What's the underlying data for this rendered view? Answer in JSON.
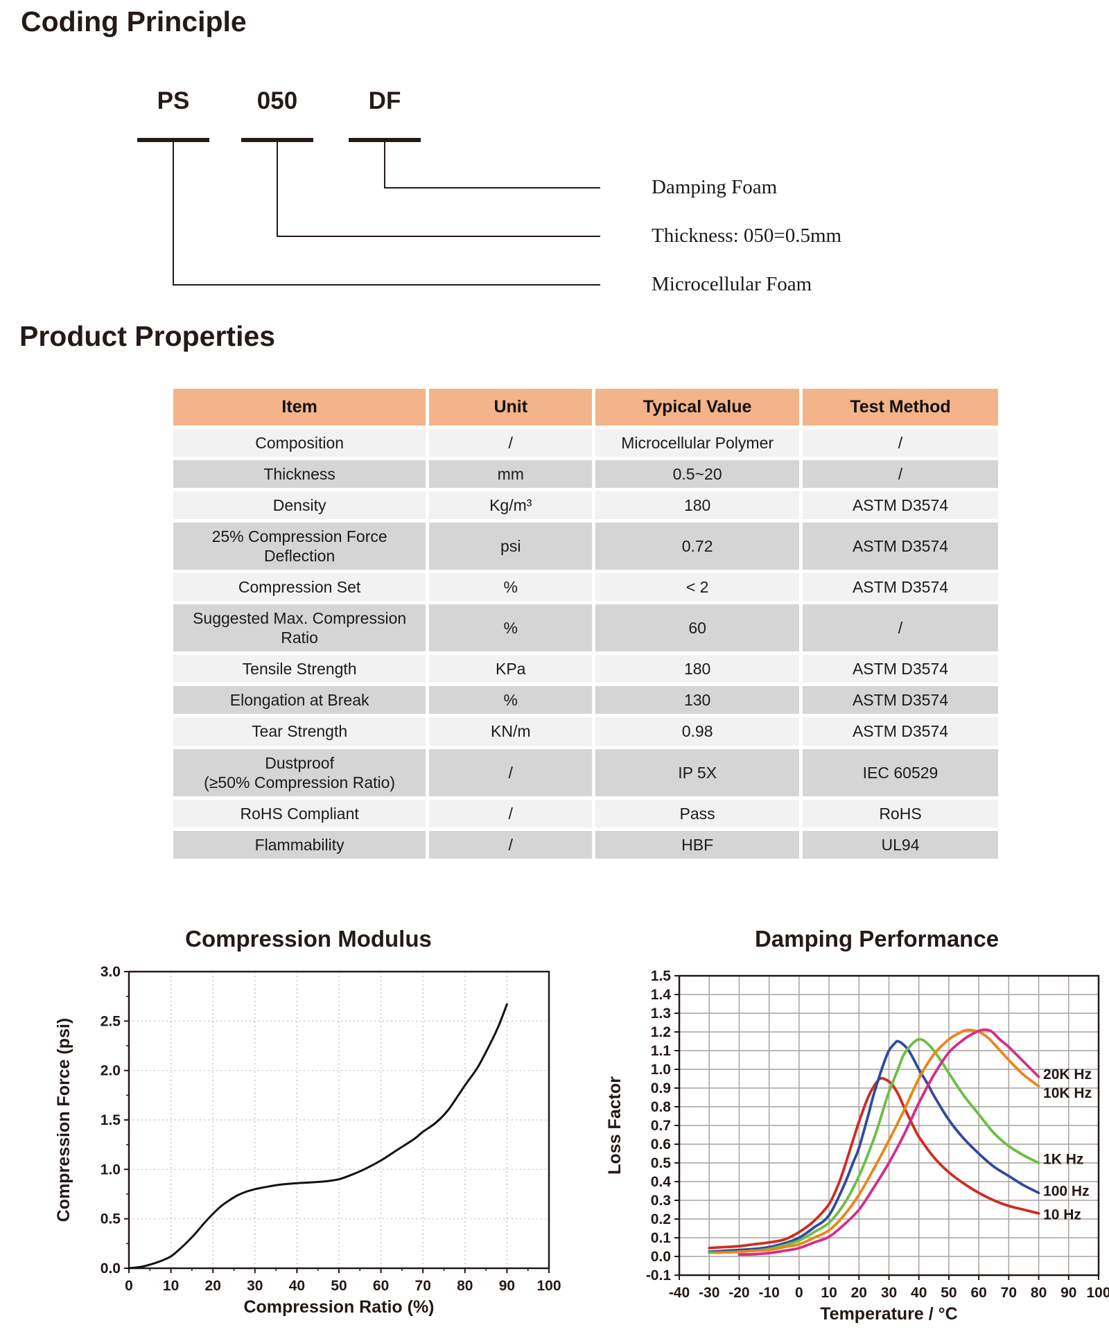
{
  "coding_section": {
    "title": "Coding Principle",
    "codes": [
      {
        "code": "PS",
        "label": "Microcellular Foam"
      },
      {
        "code": "050",
        "label": "Thickness: 050=0.5mm"
      },
      {
        "code": "DF",
        "label": "Damping Foam"
      }
    ]
  },
  "properties_section": {
    "title": "Product Properties",
    "table": {
      "header_bg": "#f2b488",
      "row_bg_light": "#f2f2f2",
      "row_bg_dark": "#d5d5d5",
      "headers": [
        "Item",
        "Unit",
        "Typical Value",
        "Test Method"
      ],
      "rows": [
        {
          "item": "Composition",
          "unit": "/",
          "typical_value": "Microcellular Polymer",
          "test_method": "/"
        },
        {
          "item": "Thickness",
          "unit": "mm",
          "typical_value": "0.5~20",
          "test_method": "/"
        },
        {
          "item": "Density",
          "unit": "Kg/m³",
          "typical_value": "180",
          "test_method": "ASTM D3574"
        },
        {
          "item": "25% Compression Force\nDeflection",
          "unit": "psi",
          "typical_value": "0.72",
          "test_method": "ASTM D3574"
        },
        {
          "item": "Compression Set",
          "unit": "%",
          "typical_value": "< 2",
          "test_method": "ASTM D3574"
        },
        {
          "item": "Suggested Max. Compression\nRatio",
          "unit": "%",
          "typical_value": "60",
          "test_method": "/"
        },
        {
          "item": "Tensile Strength",
          "unit": "KPa",
          "typical_value": "180",
          "test_method": "ASTM D3574"
        },
        {
          "item": "Elongation at Break",
          "unit": "%",
          "typical_value": "130",
          "test_method": "ASTM D3574"
        },
        {
          "item": "Tear Strength",
          "unit": "KN/m",
          "typical_value": "0.98",
          "test_method": "ASTM D3574"
        },
        {
          "item": "Dustproof\n(≥50% Compression Ratio)",
          "unit": "/",
          "typical_value": "IP 5X",
          "test_method": "IEC 60529"
        },
        {
          "item": "RoHS Compliant",
          "unit": "/",
          "typical_value": "Pass",
          "test_method": "RoHS"
        },
        {
          "item": "Flammability",
          "unit": "/",
          "typical_value": "HBF",
          "test_method": "UL94"
        }
      ]
    }
  },
  "chart_data": [
    {
      "type": "line",
      "title": "Compression Modulus",
      "xlabel": "Compression Ratio (%)",
      "ylabel": "Compression Force (psi)",
      "xlim": [
        0,
        100
      ],
      "ylim": [
        0,
        3.0
      ],
      "xstep": 10,
      "ystep": 0.5,
      "x_minor": 5,
      "y_minor": 0.25,
      "grid": "dotted",
      "grid_color": "#c9bdb9",
      "x_decimals": 0,
      "y_decimals": 1,
      "series": [
        {
          "name": "compression-curve",
          "color": "#111111",
          "points": [
            [
              0,
              0
            ],
            [
              3,
              0.015
            ],
            [
              6,
              0.05
            ],
            [
              8,
              0.08
            ],
            [
              10,
              0.12
            ],
            [
              12,
              0.19
            ],
            [
              14,
              0.27
            ],
            [
              16,
              0.36
            ],
            [
              18,
              0.46
            ],
            [
              20,
              0.55
            ],
            [
              22,
              0.63
            ],
            [
              24,
              0.69
            ],
            [
              26,
              0.74
            ],
            [
              28,
              0.775
            ],
            [
              30,
              0.8
            ],
            [
              33,
              0.825
            ],
            [
              36,
              0.845
            ],
            [
              40,
              0.86
            ],
            [
              44,
              0.87
            ],
            [
              47,
              0.88
            ],
            [
              50,
              0.9
            ],
            [
              53,
              0.945
            ],
            [
              56,
              1.0
            ],
            [
              60,
              1.09
            ],
            [
              64,
              1.2
            ],
            [
              68,
              1.31
            ],
            [
              70,
              1.38
            ],
            [
              73,
              1.47
            ],
            [
              76,
              1.6
            ],
            [
              80,
              1.85
            ],
            [
              83,
              2.03
            ],
            [
              86,
              2.27
            ],
            [
              88,
              2.45
            ],
            [
              90,
              2.67
            ]
          ]
        }
      ],
      "series_labels": []
    },
    {
      "type": "line",
      "title": "Damping Performance",
      "xlabel": "Temperature / °C",
      "ylabel": "Loss Factor",
      "xlim": [
        -40,
        100
      ],
      "ylim": [
        -0.1,
        1.5
      ],
      "xstep": 10,
      "ystep": 0.1,
      "grid": "solid",
      "grid_color": "#a9a29d",
      "x_decimals": 0,
      "y_decimals": 1,
      "series": [
        {
          "name": "10 Hz",
          "color": "#d02c20",
          "points": [
            [
              -30,
              0.045
            ],
            [
              -25,
              0.05
            ],
            [
              -20,
              0.055
            ],
            [
              -15,
              0.065
            ],
            [
              -10,
              0.075
            ],
            [
              -5,
              0.09
            ],
            [
              0,
              0.13
            ],
            [
              5,
              0.19
            ],
            [
              10,
              0.28
            ],
            [
              13,
              0.38
            ],
            [
              15,
              0.47
            ],
            [
              18,
              0.62
            ],
            [
              20,
              0.72
            ],
            [
              23,
              0.85
            ],
            [
              25,
              0.91
            ],
            [
              27,
              0.95
            ],
            [
              29,
              0.945
            ],
            [
              31,
              0.92
            ],
            [
              33,
              0.87
            ],
            [
              35,
              0.8
            ],
            [
              38,
              0.7
            ],
            [
              40,
              0.64
            ],
            [
              45,
              0.53
            ],
            [
              50,
              0.45
            ],
            [
              55,
              0.39
            ],
            [
              60,
              0.34
            ],
            [
              65,
              0.3
            ],
            [
              70,
              0.27
            ],
            [
              75,
              0.25
            ],
            [
              80,
              0.23
            ]
          ]
        },
        {
          "name": "100 Hz",
          "color": "#2f4b9e",
          "points": [
            [
              -30,
              0.025
            ],
            [
              -25,
              0.03
            ],
            [
              -20,
              0.035
            ],
            [
              -15,
              0.04
            ],
            [
              -10,
              0.05
            ],
            [
              -5,
              0.07
            ],
            [
              0,
              0.1
            ],
            [
              5,
              0.155
            ],
            [
              10,
              0.22
            ],
            [
              15,
              0.38
            ],
            [
              18,
              0.5
            ],
            [
              20,
              0.58
            ],
            [
              23,
              0.75
            ],
            [
              25,
              0.87
            ],
            [
              28,
              1.02
            ],
            [
              30,
              1.1
            ],
            [
              32,
              1.14
            ],
            [
              33,
              1.15
            ],
            [
              35,
              1.13
            ],
            [
              37,
              1.09
            ],
            [
              40,
              1.0
            ],
            [
              43,
              0.92
            ],
            [
              45,
              0.86
            ],
            [
              50,
              0.73
            ],
            [
              55,
              0.63
            ],
            [
              60,
              0.55
            ],
            [
              65,
              0.48
            ],
            [
              70,
              0.43
            ],
            [
              75,
              0.38
            ],
            [
              80,
              0.34
            ]
          ]
        },
        {
          "name": "1K Hz",
          "color": "#6abf45",
          "points": [
            [
              -30,
              0.02
            ],
            [
              -25,
              0.022
            ],
            [
              -20,
              0.025
            ],
            [
              -15,
              0.03
            ],
            [
              -10,
              0.04
            ],
            [
              -5,
              0.06
            ],
            [
              0,
              0.085
            ],
            [
              5,
              0.13
            ],
            [
              10,
              0.18
            ],
            [
              15,
              0.28
            ],
            [
              20,
              0.43
            ],
            [
              25,
              0.63
            ],
            [
              28,
              0.78
            ],
            [
              30,
              0.88
            ],
            [
              33,
              1.0
            ],
            [
              35,
              1.08
            ],
            [
              38,
              1.14
            ],
            [
              40,
              1.16
            ],
            [
              42,
              1.15
            ],
            [
              45,
              1.1
            ],
            [
              48,
              1.03
            ],
            [
              50,
              0.98
            ],
            [
              55,
              0.86
            ],
            [
              60,
              0.76
            ],
            [
              65,
              0.66
            ],
            [
              70,
              0.59
            ],
            [
              75,
              0.54
            ],
            [
              80,
              0.5
            ]
          ]
        },
        {
          "name": "10K Hz",
          "color": "#e8861c",
          "points": [
            [
              -28,
              0.02
            ],
            [
              -20,
              0.025
            ],
            [
              -15,
              0.03
            ],
            [
              -10,
              0.035
            ],
            [
              -5,
              0.05
            ],
            [
              0,
              0.065
            ],
            [
              5,
              0.1
            ],
            [
              10,
              0.14
            ],
            [
              15,
              0.22
            ],
            [
              20,
              0.33
            ],
            [
              25,
              0.47
            ],
            [
              30,
              0.62
            ],
            [
              35,
              0.78
            ],
            [
              40,
              0.95
            ],
            [
              45,
              1.08
            ],
            [
              50,
              1.16
            ],
            [
              53,
              1.19
            ],
            [
              56,
              1.21
            ],
            [
              60,
              1.2
            ],
            [
              63,
              1.17
            ],
            [
              66,
              1.12
            ],
            [
              70,
              1.05
            ],
            [
              75,
              0.97
            ],
            [
              80,
              0.91
            ]
          ]
        },
        {
          "name": "20K Hz",
          "color": "#d42d87",
          "points": [
            [
              -20,
              0.01
            ],
            [
              -15,
              0.012
            ],
            [
              -10,
              0.018
            ],
            [
              -5,
              0.03
            ],
            [
              0,
              0.045
            ],
            [
              5,
              0.075
            ],
            [
              10,
              0.105
            ],
            [
              15,
              0.17
            ],
            [
              20,
              0.25
            ],
            [
              25,
              0.37
            ],
            [
              30,
              0.5
            ],
            [
              35,
              0.65
            ],
            [
              40,
              0.82
            ],
            [
              45,
              0.97
            ],
            [
              50,
              1.09
            ],
            [
              55,
              1.16
            ],
            [
              58,
              1.19
            ],
            [
              61,
              1.21
            ],
            [
              64,
              1.205
            ],
            [
              67,
              1.16
            ],
            [
              70,
              1.12
            ],
            [
              75,
              1.04
            ],
            [
              80,
              0.96
            ]
          ]
        }
      ],
      "series_labels": [
        {
          "text": "20K Hz",
          "x": 81.5,
          "y": 0.975
        },
        {
          "text": "10K Hz",
          "x": 81.5,
          "y": 0.875
        },
        {
          "text": "1K Hz",
          "x": 81.5,
          "y": 0.52
        },
        {
          "text": "100 Hz",
          "x": 81.5,
          "y": 0.35
        },
        {
          "text": "10 Hz",
          "x": 81.5,
          "y": 0.225
        }
      ]
    }
  ]
}
